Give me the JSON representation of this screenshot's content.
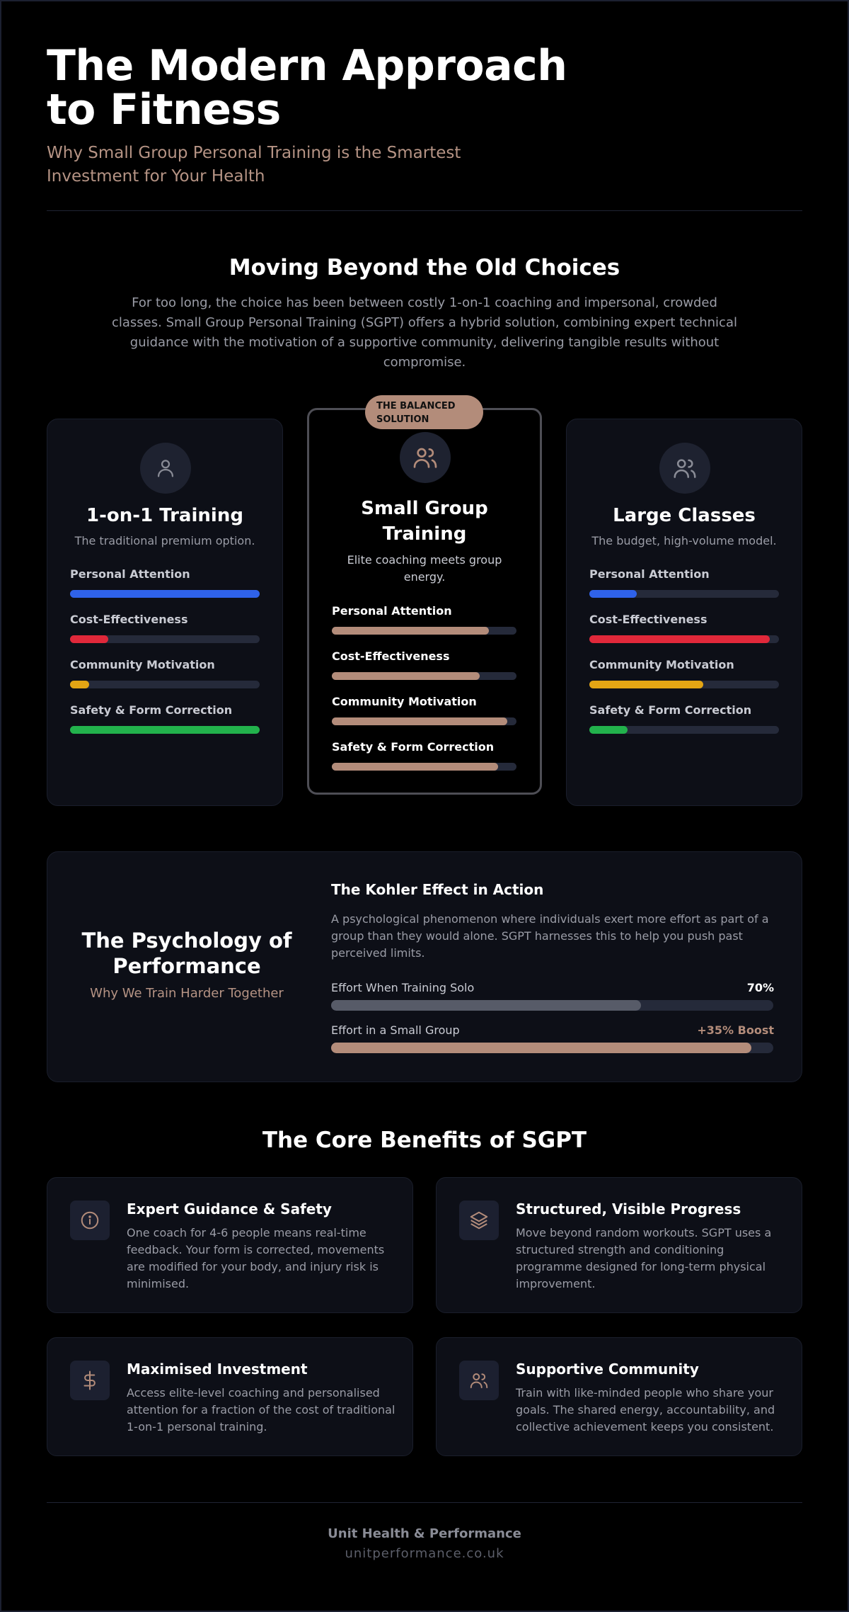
{
  "hero": {
    "title": "The Modern Approach to Fitness",
    "subtitle": "Why Small Group Personal Training is the Smartest Investment for Your Health"
  },
  "intro": {
    "title": "Moving Beyond the Old Choices",
    "text": "For too long, the choice has been between costly 1-on-1 coaching and impersonal, crowded classes. Small Group Personal Training (SGPT) offers a hybrid solution, combining expert technical guidance with the motivation of a supportive community, delivering tangible results without compromise."
  },
  "metric_labels": [
    "Personal Attention",
    "Cost-Effectiveness",
    "Community Motivation",
    "Safety & Form Correction"
  ],
  "comparison": [
    {
      "icon": "user-icon",
      "title": "1-on-1 Training",
      "subtitle": "The traditional premium option.",
      "metrics": [
        {
          "label": "Personal Attention",
          "value": 1.0,
          "color": "#2f62e9"
        },
        {
          "label": "Cost-Effectiveness",
          "value": 0.2,
          "color": "#e0283a"
        },
        {
          "label": "Community Motivation",
          "value": 0.1,
          "color": "#e3a514"
        },
        {
          "label": "Safety & Form Correction",
          "value": 1.0,
          "color": "#22b24c"
        }
      ]
    },
    {
      "icon": "users-icon",
      "badge": "THE BALANCED SOLUTION",
      "title": "Small Group Training",
      "subtitle": "Elite coaching meets group energy.",
      "metrics": [
        {
          "label": "Personal Attention",
          "value": 0.85,
          "color": "#b38c7a"
        },
        {
          "label": "Cost-Effectiveness",
          "value": 0.8,
          "color": "#b38c7a"
        },
        {
          "label": "Community Motivation",
          "value": 0.95,
          "color": "#b38c7a"
        },
        {
          "label": "Safety & Form Correction",
          "value": 0.9,
          "color": "#b38c7a"
        }
      ]
    },
    {
      "icon": "users-icon",
      "title": "Large Classes",
      "subtitle": "The budget, high-volume model.",
      "metrics": [
        {
          "label": "Personal Attention",
          "value": 0.25,
          "color": "#2f62e9"
        },
        {
          "label": "Cost-Effectiveness",
          "value": 0.95,
          "color": "#e0283a"
        },
        {
          "label": "Community Motivation",
          "value": 0.6,
          "color": "#e3a514"
        },
        {
          "label": "Safety & Form Correction",
          "value": 0.2,
          "color": "#22b24c"
        }
      ]
    }
  ],
  "psychology": {
    "title": "The Psychology of Performance",
    "subtitle": "Why We Train Harder Together",
    "kohler_title": "The Kohler Effect in Action",
    "kohler_text": "A psychological phenomenon where individuals exert more effort as part of a group than they would alone. SGPT harnesses this to help you push past perceived limits.",
    "solo_label": "Effort When Training Solo",
    "solo_value": "70%",
    "solo_fill": 0.7,
    "group_label": "Effort in a Small Group",
    "group_value": "+35% Boost",
    "group_fill": 0.95
  },
  "benefits": {
    "title": "The Core Benefits of SGPT",
    "items": [
      {
        "icon": "info-icon",
        "title": "Expert Guidance & Safety",
        "text": "One coach for 4-6 people means real-time feedback. Your form is corrected, movements are modified for your body, and injury risk is minimised."
      },
      {
        "icon": "layers-icon",
        "title": "Structured, Visible Progress",
        "text": "Move beyond random workouts. SGPT uses a structured strength and conditioning programme designed for long-term physical improvement."
      },
      {
        "icon": "dollar-icon",
        "title": "Maximised Investment",
        "text": "Access elite-level coaching and personalised attention for a fraction of the cost of traditional 1-on-1 personal training."
      },
      {
        "icon": "users-icon",
        "title": "Supportive Community",
        "text": "Train with like-minded people who share your goals. The shared energy, accountability, and collective achievement keeps you consistent."
      }
    ]
  },
  "footer": {
    "name": "Unit Health & Performance",
    "url": "unitperformance.co.uk"
  },
  "colors": {
    "accent": "#b38c7a",
    "blue": "#2f62e9",
    "red": "#e0283a",
    "yellow": "#e3a514",
    "green": "#22b24c",
    "solo_bar": "#575b68"
  }
}
